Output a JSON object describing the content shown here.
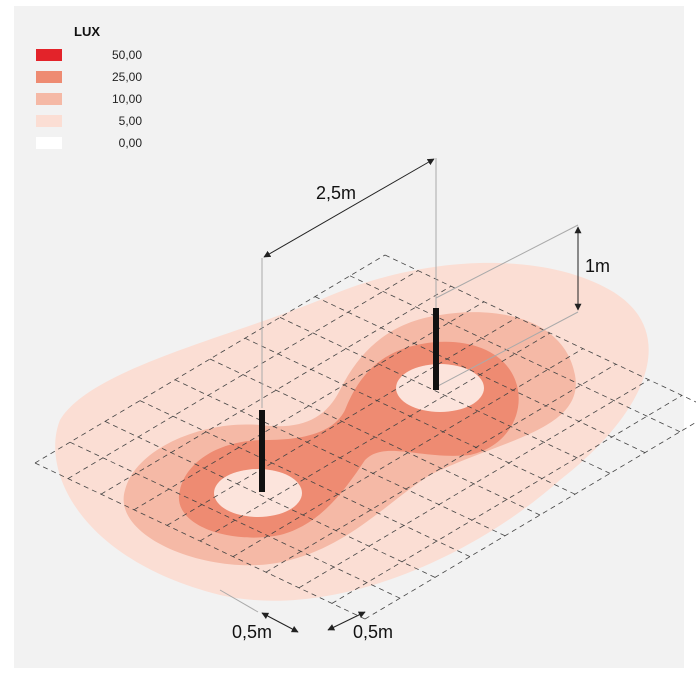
{
  "legend": {
    "title": "LUX",
    "items": [
      {
        "value": "50,00",
        "color": "#e3232a"
      },
      {
        "value": "25,00",
        "color": "#ee8b72"
      },
      {
        "value": "10,00",
        "color": "#f5b9a6"
      },
      {
        "value": "5,00",
        "color": "#fbded4"
      },
      {
        "value": "0,00",
        "color": "#ffffff"
      }
    ]
  },
  "dimensions": {
    "spacing": "2,5m",
    "height": "1m",
    "grid_left": "0,5m",
    "grid_right": "0,5m"
  },
  "colors": {
    "background": "#f2f2f2",
    "zone_5": "#fbded4",
    "zone_10": "#f5b9a6",
    "zone_25": "#ee8b72",
    "center": "#fdecE6",
    "pole": "#111111",
    "grid": "#555555",
    "dimension_line": "#333333"
  }
}
